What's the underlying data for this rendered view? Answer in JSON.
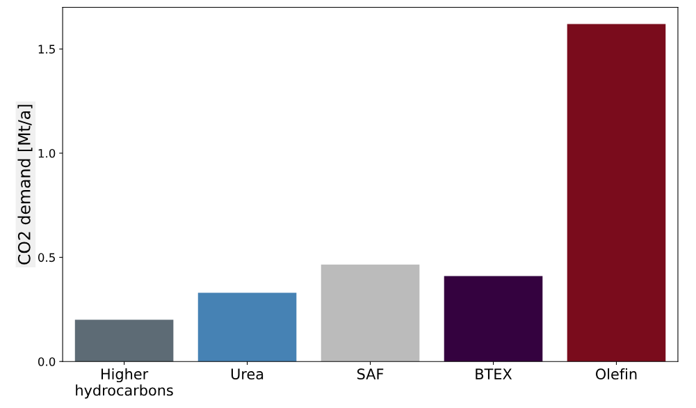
{
  "chart_data": {
    "type": "bar",
    "ylabel": "CO2 demand [Mt/a]",
    "categories": [
      "Higher\nhydrocarbons",
      "Urea",
      "SAF",
      "BTEX",
      "Olefin"
    ],
    "values": [
      0.2,
      0.33,
      0.465,
      0.41,
      1.62
    ],
    "colors": [
      "#5d6b75",
      "#4682b4",
      "#bbbbbb",
      "#34023f",
      "#7a0c1c"
    ],
    "ylim": [
      0,
      1.7
    ],
    "yticks": [
      {
        "value": 0,
        "label": "0.0"
      },
      0.5,
      {
        "value": 1,
        "label": "1.0"
      },
      1.5
    ],
    "grid": false
  }
}
